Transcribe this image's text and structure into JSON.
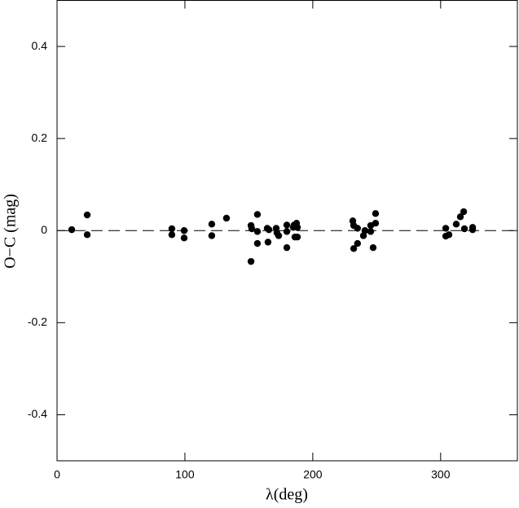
{
  "chart_data": {
    "type": "scatter",
    "xlabel": "λ(deg)",
    "ylabel": "O−C (mag)",
    "x": [
      11.5,
      23.6,
      23.6,
      89.8,
      89.8,
      99.4,
      99.4,
      121.0,
      121.0,
      132.5,
      151.7,
      152.3,
      151.7,
      156.7,
      156.7,
      156.7,
      164.4,
      165.7,
      165.0,
      171.4,
      172.0,
      173.3,
      179.7,
      179.7,
      179.7,
      184.8,
      185.4,
      186.0,
      187.3,
      188.0,
      188.0,
      231.3,
      232.0,
      232.0,
      235.0,
      235.0,
      239.6,
      240.8,
      245.3,
      245.3,
      247.2,
      249.1,
      249.1,
      304.0,
      304.0,
      306.5,
      312.2,
      315.4,
      318.0,
      318.6,
      325.0,
      325.0
    ],
    "values": [
      0.002,
      0.034,
      -0.009,
      0.004,
      -0.009,
      0.0,
      -0.016,
      0.014,
      -0.011,
      0.027,
      0.011,
      0.004,
      -0.067,
      0.035,
      -0.002,
      -0.028,
      0.005,
      0.002,
      -0.025,
      0.005,
      -0.005,
      -0.011,
      0.012,
      -0.002,
      -0.037,
      0.007,
      0.012,
      -0.014,
      0.016,
      0.007,
      -0.014,
      0.021,
      0.011,
      -0.039,
      0.005,
      -0.028,
      -0.011,
      0.0,
      0.011,
      -0.002,
      -0.037,
      0.037,
      0.016,
      0.005,
      -0.012,
      -0.009,
      0.014,
      0.03,
      0.041,
      0.004,
      0.007,
      0.002
    ],
    "color": "#000000",
    "hline": 0,
    "xlim": [
      0,
      360
    ],
    "ylim": [
      -0.5,
      0.5
    ],
    "xticks": [
      0,
      100,
      200,
      300
    ],
    "yticks": [
      -0.4,
      -0.2,
      0,
      0.2,
      0.4
    ]
  }
}
